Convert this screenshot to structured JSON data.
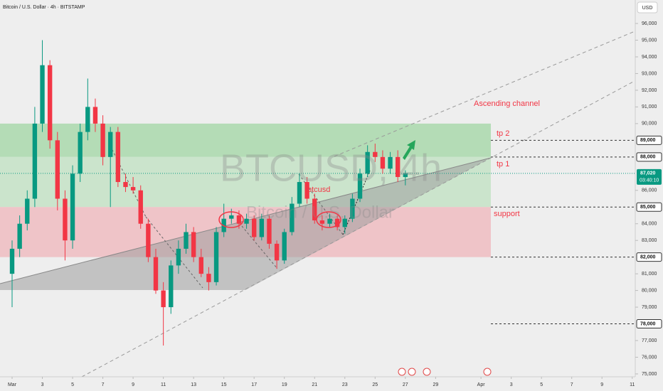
{
  "chart_data": {
    "type": "candlestick",
    "title": "Bitcoin / U.S. Dollar · 4h · BITSTAMP",
    "currency": "USD",
    "watermark": "BTCUSD, 4h",
    "watermark_subtitle": "Bitcoin / U.S. Dollar",
    "annotations": {
      "channel": "Ascending channel",
      "tp2": "tp 2",
      "tp1": "tp 1",
      "support": "support",
      "symbol": "btcusd"
    },
    "up_color": "#089981",
    "down_color": "#f23645",
    "xlim": [
      0.2,
      42.2
    ],
    "ylim": [
      74700,
      96300
    ],
    "x": [
      1,
      1.5,
      2,
      2.5,
      3,
      3.5,
      4,
      4.5,
      5,
      5.5,
      6,
      6.5,
      7,
      7.5,
      8,
      8.5,
      9,
      9.5,
      10,
      10.5,
      11,
      11.5,
      12,
      12.5,
      13,
      13.5,
      14,
      14.5,
      15,
      15.5,
      16,
      16.5,
      17,
      17.5,
      18,
      18.5,
      19,
      19.5,
      20,
      20.5,
      21,
      21.5,
      22,
      22.5,
      23,
      23.5,
      24,
      24.5,
      25,
      25.5,
      26,
      26.5,
      27
    ],
    "open": [
      81000,
      82500,
      84000,
      85500,
      90000,
      93500,
      89000,
      85500,
      83000,
      87000,
      89500,
      91000,
      90000,
      88000,
      89500,
      86500,
      86200,
      86000,
      84000,
      82000,
      80000,
      79000,
      81500,
      82500,
      83500,
      82000,
      81000,
      80500,
      83500,
      84300,
      84500,
      84000,
      84300,
      83200,
      84300,
      82800,
      81800,
      83500,
      85200,
      86500,
      85500,
      84200,
      84000,
      84300,
      83800,
      84300,
      85500,
      87000,
      88300,
      88000,
      87300,
      88000,
      86800
    ],
    "high": [
      83000,
      84500,
      86000,
      91000,
      95000,
      93800,
      89500,
      86000,
      87500,
      90000,
      92700,
      91500,
      90500,
      89800,
      89800,
      87000,
      86800,
      86300,
      84300,
      82500,
      80500,
      81800,
      83000,
      84000,
      83800,
      82500,
      81400,
      83800,
      85200,
      84900,
      84800,
      84600,
      84500,
      84600,
      84500,
      83000,
      83700,
      85600,
      87000,
      86800,
      85800,
      84500,
      84600,
      84500,
      84500,
      85800,
      87300,
      88700,
      88800,
      88400,
      88300,
      88400,
      87200
    ],
    "low": [
      79000,
      82000,
      83600,
      85000,
      89500,
      88500,
      84800,
      81800,
      82500,
      86500,
      89000,
      89500,
      87500,
      85000,
      86200,
      85900,
      85800,
      83700,
      81700,
      79800,
      76700,
      78600,
      81000,
      82200,
      81700,
      80800,
      80000,
      80300,
      83200,
      84000,
      83700,
      83700,
      83000,
      83000,
      82500,
      81300,
      81600,
      83300,
      85000,
      85200,
      84000,
      83600,
      83800,
      83600,
      83400,
      84100,
      85300,
      86800,
      87700,
      87000,
      87000,
      86500,
      86300
    ],
    "close": [
      82500,
      84000,
      85500,
      90000,
      93500,
      89000,
      85500,
      83000,
      87000,
      89500,
      91000,
      90000,
      88000,
      89500,
      86500,
      86200,
      86000,
      84000,
      82000,
      80000,
      79000,
      81500,
      82500,
      83500,
      82000,
      81000,
      80500,
      83500,
      84300,
      84500,
      84000,
      84300,
      83200,
      84300,
      82800,
      81800,
      83500,
      85200,
      86500,
      85500,
      84200,
      84000,
      84300,
      83800,
      84300,
      85500,
      87000,
      88300,
      88000,
      87300,
      88000,
      86800,
      87020
    ],
    "zones": [
      {
        "from": 88000,
        "to": 90000,
        "color": "#a9d8ab"
      },
      {
        "from": 85000,
        "to": 88000,
        "color": "#c4e2c5"
      },
      {
        "from": 82000,
        "to": 85000,
        "color": "#eebcc1"
      }
    ],
    "levels": [
      {
        "value": 89000,
        "label": "89,000"
      },
      {
        "value": 88000,
        "label": "88,000"
      },
      {
        "value": 85000,
        "label": "85,000"
      },
      {
        "value": 82000,
        "label": "82,000"
      },
      {
        "value": 78000,
        "label": "78,000"
      }
    ],
    "last_price": {
      "value": 87020,
      "label": "87,020"
    },
    "countdown": "03:40:10",
    "yticks": [
      {
        "value": 75000,
        "label": "75,000"
      },
      {
        "value": 76000,
        "label": "76,000"
      },
      {
        "value": 77000,
        "label": "77,000"
      },
      {
        "value": 79000,
        "label": "79,000"
      },
      {
        "value": 80000,
        "label": "80,000"
      },
      {
        "value": 81000,
        "label": "81,000"
      },
      {
        "value": 83000,
        "label": "83,000"
      },
      {
        "value": 84000,
        "label": "84,000"
      },
      {
        "value": 86000,
        "label": "86,000"
      },
      {
        "value": 90000,
        "label": "90,000"
      },
      {
        "value": 91000,
        "label": "91,000"
      },
      {
        "value": 92000,
        "label": "92,000"
      },
      {
        "value": 93000,
        "label": "93,000"
      },
      {
        "value": 94000,
        "label": "94,000"
      },
      {
        "value": 95000,
        "label": "95,000"
      },
      {
        "value": 96000,
        "label": "96,000"
      }
    ],
    "xticks": [
      {
        "value": 1,
        "label": "Mar"
      },
      3,
      5,
      7,
      9,
      11,
      13,
      15,
      17,
      19,
      21,
      23,
      25,
      27,
      29,
      {
        "value": 32,
        "label": "Apr"
      },
      {
        "value": 34,
        "label": "3"
      },
      {
        "value": 36,
        "label": "5"
      },
      {
        "value": 38,
        "label": "7"
      },
      {
        "value": 40,
        "label": "9"
      },
      {
        "value": 42,
        "label": "11"
      }
    ]
  }
}
